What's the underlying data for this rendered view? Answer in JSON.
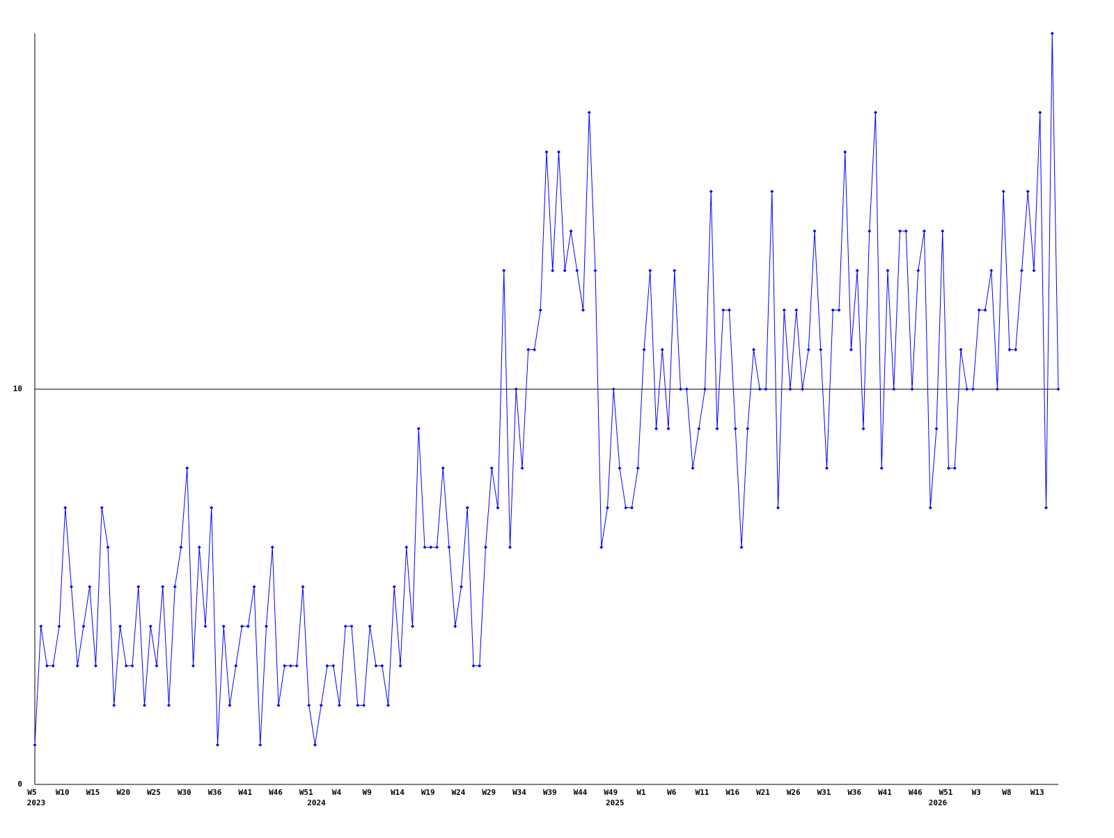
{
  "chart_data": {
    "type": "line",
    "categories": [
      "W5",
      null,
      null,
      null,
      null,
      "W10",
      null,
      null,
      null,
      null,
      "W15",
      null,
      null,
      null,
      null,
      "W20",
      null,
      null,
      null,
      null,
      "W25",
      null,
      null,
      null,
      null,
      "W30",
      null,
      null,
      null,
      null,
      "W36",
      null,
      null,
      null,
      null,
      "W41",
      null,
      null,
      null,
      null,
      "W46",
      null,
      null,
      null,
      null,
      "W51",
      null,
      null,
      null,
      null,
      "W4",
      null,
      null,
      null,
      null,
      "W9",
      null,
      null,
      null,
      null,
      "W14",
      null,
      null,
      null,
      null,
      "W19",
      null,
      null,
      null,
      null,
      "W24",
      null,
      null,
      null,
      null,
      "W29",
      null,
      null,
      null,
      null,
      "W34",
      null,
      null,
      null,
      null,
      "W39",
      null,
      null,
      null,
      null,
      "W44",
      null,
      null,
      null,
      null,
      "W49",
      null,
      null,
      null,
      null,
      "W1",
      null,
      null,
      null,
      null,
      "W6",
      null,
      null,
      null,
      null,
      "W11",
      null,
      null,
      null,
      null,
      "W16",
      null,
      null,
      null,
      null,
      "W21",
      null,
      null,
      null,
      null,
      "W26",
      null,
      null,
      null,
      null,
      "W31",
      null,
      null,
      null,
      null,
      "W36",
      null,
      null,
      null,
      null,
      "W41",
      null,
      null,
      null,
      null,
      "W46",
      null,
      null,
      null,
      null,
      "W51",
      null,
      null,
      null,
      null,
      "W3",
      null,
      null,
      null,
      null,
      "W8",
      null,
      null,
      null,
      null,
      "W13",
      null,
      null,
      null
    ],
    "years": [
      "2023",
      null,
      null,
      null,
      null,
      null,
      null,
      null,
      null,
      null,
      null,
      null,
      null,
      null,
      null,
      null,
      null,
      null,
      null,
      null,
      null,
      null,
      null,
      null,
      null,
      null,
      null,
      null,
      null,
      null,
      null,
      null,
      null,
      null,
      null,
      null,
      null,
      null,
      null,
      null,
      null,
      null,
      null,
      null,
      null,
      null,
      "2024",
      null,
      null,
      null,
      null,
      null,
      null,
      null,
      null,
      null,
      null,
      null,
      null,
      null,
      null,
      null,
      null,
      null,
      null,
      null,
      null,
      null,
      null,
      null,
      null,
      null,
      null,
      null,
      null,
      null,
      null,
      null,
      null,
      null,
      null,
      null,
      null,
      null,
      null,
      null,
      null,
      null,
      null,
      null,
      null,
      null,
      null,
      null,
      null,
      "2025",
      null,
      null,
      null,
      null,
      null,
      null,
      null,
      null,
      null,
      null,
      null,
      null,
      null,
      null,
      null,
      null,
      null,
      null,
      null,
      null,
      null,
      null,
      null,
      null,
      null,
      null,
      null,
      null,
      null,
      null,
      null,
      null,
      null,
      null,
      null,
      null,
      null,
      null,
      null,
      null,
      null,
      null,
      null,
      null,
      null,
      null,
      null,
      null,
      null,
      null,
      null,
      null,
      "2026",
      null,
      null,
      null,
      null,
      null,
      null,
      null,
      null,
      null,
      null,
      null,
      null,
      null,
      null,
      null,
      null
    ],
    "series": [
      {
        "color": "#0000ff",
        "values": [
          1,
          4,
          3,
          3,
          4,
          7,
          5,
          3,
          4,
          5,
          3,
          7,
          6,
          2,
          4,
          3,
          3,
          5,
          2,
          4,
          3,
          5,
          2,
          5,
          6,
          8,
          3,
          6,
          4,
          7,
          1,
          4,
          2,
          3,
          4,
          4,
          5,
          1,
          4,
          6,
          2,
          3,
          3,
          3,
          5,
          2,
          1,
          2,
          3,
          3,
          2,
          4,
          4,
          2,
          2,
          4,
          3,
          3,
          2,
          5,
          3,
          6,
          4,
          9,
          6,
          6,
          6,
          8,
          6,
          4,
          5,
          7,
          3,
          3,
          6,
          8,
          7,
          13,
          6,
          10,
          8,
          11,
          11,
          12,
          16,
          13,
          16,
          13,
          14,
          13,
          12,
          17,
          13,
          6,
          7,
          10,
          8,
          7,
          7,
          8,
          11,
          13,
          9,
          11,
          9,
          13,
          10,
          10,
          8,
          9,
          10,
          15,
          9,
          12,
          12,
          9,
          6,
          9,
          11,
          10,
          10,
          15,
          7,
          12,
          10,
          12,
          10,
          11,
          14,
          11,
          8,
          12,
          12,
          16,
          11,
          13,
          9,
          14,
          17,
          8,
          13,
          10,
          14,
          14,
          10,
          13,
          14,
          7,
          9,
          14,
          8,
          8,
          11,
          10,
          10,
          12,
          12,
          13,
          10,
          15,
          11,
          11,
          13,
          15,
          13,
          17,
          7,
          19,
          10
        ]
      }
    ],
    "ylim": [
      0,
      19
    ],
    "yticks": [
      0,
      10
    ],
    "grid": true
  }
}
